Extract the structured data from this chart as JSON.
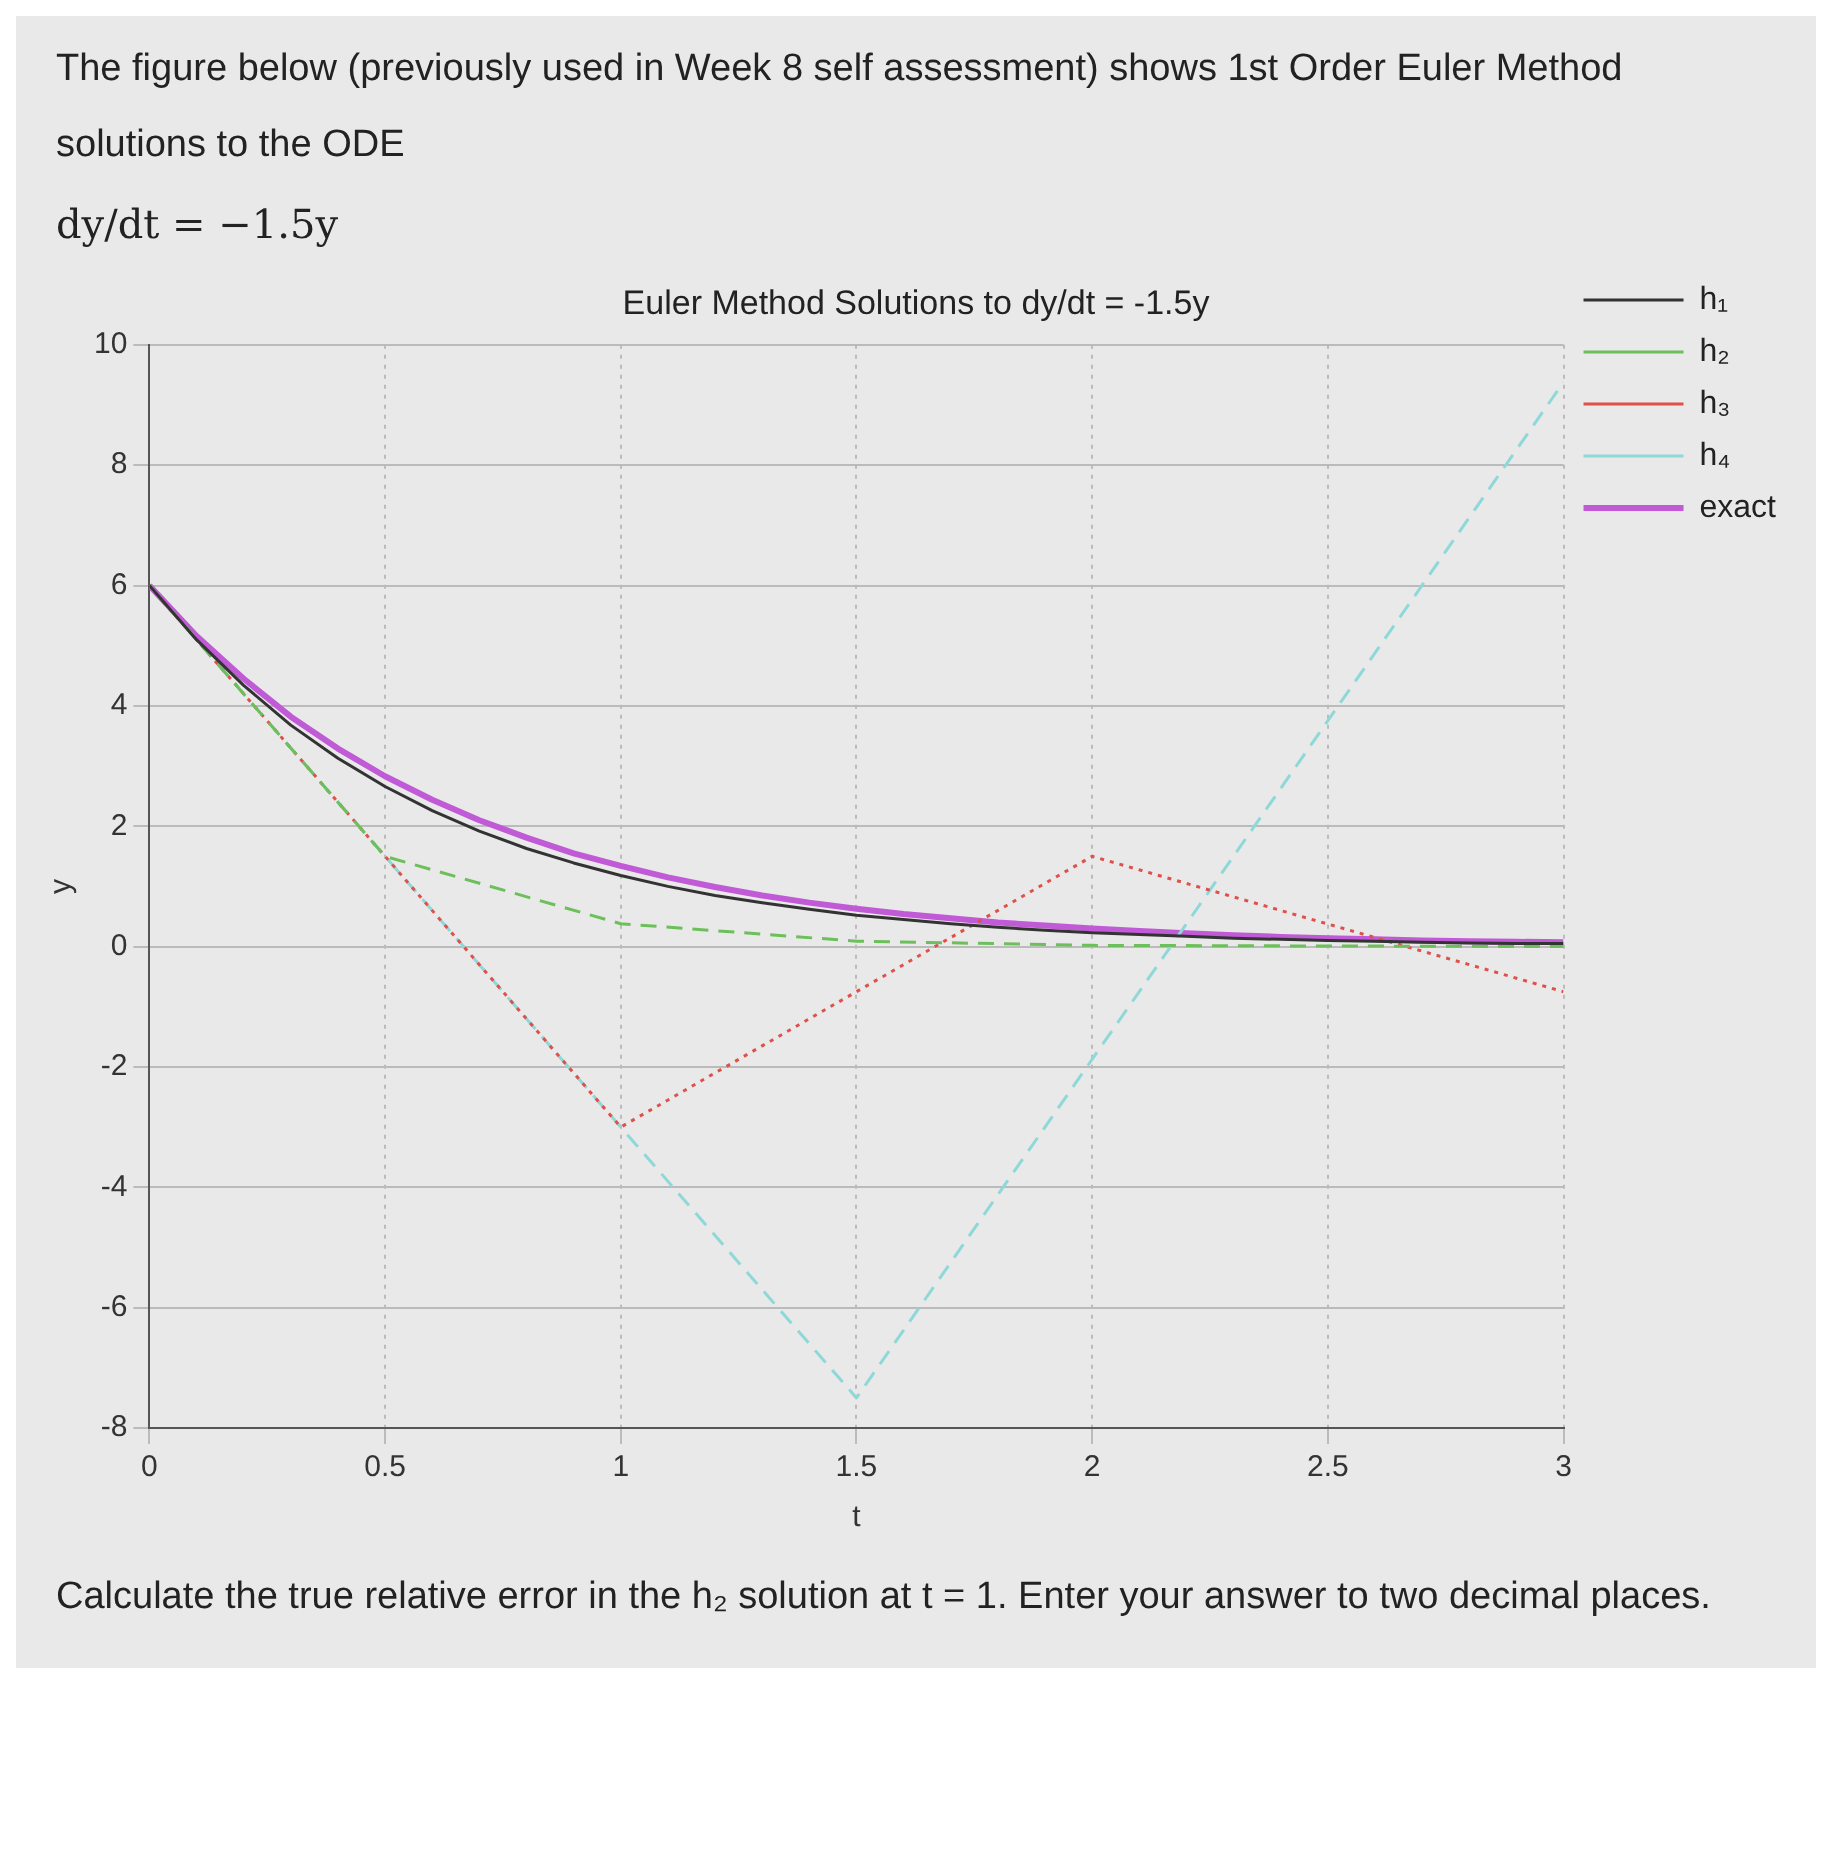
{
  "chart_data": {
    "type": "line",
    "title": "Euler Method Solutions to dy/dt = -1.5y",
    "xlabel": "t",
    "ylabel": "y",
    "annotations": [
      "The figure below (previously used in Week 8 self assessment) shows 1st Order Euler Method solutions to the ODE",
      "dy/dt = −1.5y",
      "Calculate the true relative error in the h₂ solution at t = 1. Enter your answer to two decimal places."
    ],
    "series": [
      {
        "name": "h₁",
        "color": "#333333",
        "line_style": "solid",
        "x": [
          0,
          0.1,
          0.2,
          0.3,
          0.4,
          0.5,
          0.6,
          0.7,
          0.8,
          0.9,
          1,
          1.1,
          1.2,
          1.3,
          1.4,
          1.5,
          1.6,
          1.7,
          1.8,
          1.9,
          2,
          2.1,
          2.2,
          2.3,
          2.4,
          2.5,
          2.6,
          2.7,
          2.8,
          2.9,
          3
        ],
        "values": [
          6,
          5.1,
          4.34,
          3.68,
          3.13,
          2.66,
          2.26,
          1.92,
          1.63,
          1.39,
          1.18,
          1.0,
          0.85,
          0.73,
          0.62,
          0.52,
          0.45,
          0.38,
          0.32,
          0.27,
          0.23,
          0.2,
          0.17,
          0.14,
          0.12,
          0.1,
          0.09,
          0.07,
          0.06,
          0.05,
          0.05
        ]
      },
      {
        "name": "h₂",
        "color": "#6cbf5a",
        "line_style": "dashed",
        "x": [
          0,
          0.5,
          1,
          1.5,
          2,
          2.5,
          3
        ],
        "values": [
          6,
          1.5,
          0.38,
          0.09,
          0.02,
          0.01,
          0
        ]
      },
      {
        "name": "h₃",
        "color": "#e0504a",
        "line_style": "dotted",
        "x": [
          0,
          1,
          2,
          3
        ],
        "values": [
          6,
          -3,
          1.5,
          -0.75
        ]
      },
      {
        "name": "h₄",
        "color": "#8fd8d8",
        "line_style": "dashed",
        "x": [
          0,
          1.5,
          3
        ],
        "values": [
          6,
          -7.5,
          9.38
        ]
      },
      {
        "name": "exact",
        "color": "#c05ad6",
        "line_style": "solid",
        "x": [
          0,
          0.1,
          0.2,
          0.3,
          0.4,
          0.5,
          0.6,
          0.7,
          0.8,
          0.9,
          1,
          1.1,
          1.2,
          1.3,
          1.4,
          1.5,
          1.6,
          1.7,
          1.8,
          1.9,
          2,
          2.1,
          2.2,
          2.3,
          2.4,
          2.5,
          2.6,
          2.7,
          2.8,
          2.9,
          3
        ],
        "values": [
          6,
          5.16,
          4.45,
          3.82,
          3.29,
          2.83,
          2.44,
          2.1,
          1.81,
          1.55,
          1.34,
          1.15,
          0.99,
          0.85,
          0.73,
          0.63,
          0.54,
          0.47,
          0.4,
          0.35,
          0.3,
          0.26,
          0.22,
          0.19,
          0.16,
          0.14,
          0.12,
          0.1,
          0.09,
          0.08,
          0.07
        ]
      }
    ],
    "xlim": [
      0,
      3
    ],
    "ylim": [
      -8,
      10
    ],
    "xticks": [
      0,
      0.5,
      1,
      1.5,
      2,
      2.5,
      3
    ],
    "yticks": [
      -8,
      -6,
      -4,
      -2,
      0,
      2,
      4,
      6,
      8,
      10
    ],
    "grid": true,
    "legend": "right",
    "marker": "none"
  }
}
